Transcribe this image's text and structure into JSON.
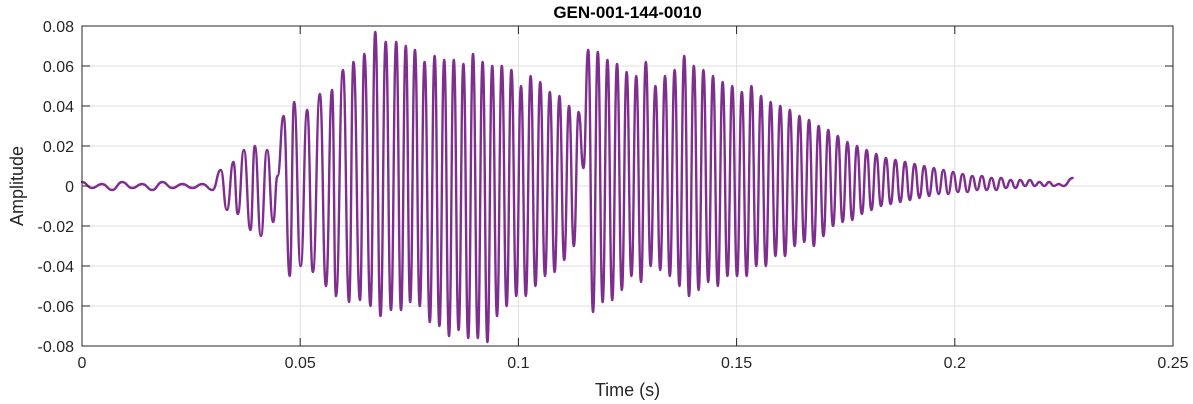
{
  "chart_data": {
    "type": "line",
    "title": "GEN-001-144-0010",
    "xlabel": "Time (s)",
    "ylabel": "Amplitude",
    "xlim": [
      0,
      0.25
    ],
    "ylim": [
      -0.08,
      0.08
    ],
    "xticks": [
      0,
      0.05,
      0.1,
      0.15,
      0.2,
      0.25
    ],
    "xtick_labels": [
      "0",
      "0.05",
      "0.1",
      "0.15",
      "0.2",
      "0.25"
    ],
    "yticks": [
      -0.08,
      -0.06,
      -0.04,
      -0.02,
      0,
      0.02,
      0.04,
      0.06,
      0.08
    ],
    "ytick_labels": [
      "-0.08",
      "-0.06",
      "-0.04",
      "-0.02",
      "0",
      "0.02",
      "0.04",
      "0.06",
      "0.08"
    ],
    "grid": true,
    "box": true,
    "colors": {
      "series": "#7E2F8E",
      "grid": "#DFDFDF",
      "axes": "#262626"
    },
    "series": [
      {
        "x": [
          0,
          0.0023,
          0.0046,
          0.0069,
          0.0092,
          0.0115,
          0.0138,
          0.0161,
          0.0184,
          0.0207,
          0.023,
          0.0253,
          0.0276,
          0.0299,
          0.0318,
          0.0332,
          0.0347,
          0.0357,
          0.0371,
          0.0386,
          0.0396,
          0.041,
          0.0424,
          0.0438,
          0.0448,
          0.0462,
          0.0476,
          0.0486,
          0.0501,
          0.0516,
          0.0529,
          0.0545,
          0.0559,
          0.0573,
          0.0582,
          0.0598,
          0.0612,
          0.0622,
          0.0637,
          0.0647,
          0.0661,
          0.0672,
          0.0684,
          0.0696,
          0.0708,
          0.072,
          0.0731,
          0.0742,
          0.0752,
          0.0763,
          0.0774,
          0.0785,
          0.0797,
          0.0808,
          0.0819,
          0.083,
          0.0841,
          0.0852,
          0.0863,
          0.0874,
          0.0885,
          0.0896,
          0.0907,
          0.0918,
          0.0929,
          0.094,
          0.0951,
          0.0962,
          0.0973,
          0.0984,
          0.0995,
          0.1006,
          0.1017,
          0.1028,
          0.1039,
          0.105,
          0.1061,
          0.1072,
          0.1083,
          0.1094,
          0.1105,
          0.1116,
          0.1127,
          0.1138,
          0.1149,
          0.116,
          0.1171,
          0.1182,
          0.1193,
          0.1204,
          0.1215,
          0.1226,
          0.1237,
          0.1248,
          0.1259,
          0.127,
          0.1281,
          0.1292,
          0.1303,
          0.1314,
          0.1325,
          0.1336,
          0.1347,
          0.1358,
          0.1369,
          0.138,
          0.1391,
          0.1402,
          0.1413,
          0.1424,
          0.1435,
          0.1446,
          0.1457,
          0.1468,
          0.1479,
          0.149,
          0.1501,
          0.1512,
          0.1523,
          0.1534,
          0.1545,
          0.1556,
          0.1567,
          0.1578,
          0.1589,
          0.16,
          0.1611,
          0.1622,
          0.1633,
          0.1644,
          0.1655,
          0.1666,
          0.1677,
          0.1688,
          0.1699,
          0.171,
          0.1721,
          0.1732,
          0.1743,
          0.1754,
          0.1765,
          0.1776,
          0.1787,
          0.1798,
          0.1809,
          0.182,
          0.1831,
          0.1842,
          0.1853,
          0.1864,
          0.1875,
          0.1886,
          0.1897,
          0.1908,
          0.1919,
          0.193,
          0.1941,
          0.1952,
          0.1963,
          0.1974,
          0.1985,
          0.1996,
          0.2007,
          0.2018,
          0.2029,
          0.204,
          0.2051,
          0.2062,
          0.2073,
          0.2084,
          0.2095,
          0.2106,
          0.2117,
          0.2128,
          0.2139,
          0.215,
          0.2161,
          0.2172,
          0.2183,
          0.2194,
          0.2205,
          0.2216,
          0.2227,
          0.2238,
          0.2249,
          0.227
        ],
        "y": [
          0.002,
          -0.001,
          0.001,
          -0.002,
          0.002,
          -0.001,
          0.001,
          -0.002,
          0.002,
          -0.001,
          0.001,
          -0.001,
          0.001,
          -0.002,
          0.008,
          -0.012,
          0.012,
          -0.014,
          0.018,
          -0.022,
          0.02,
          -0.025,
          0.018,
          -0.018,
          0.005,
          0.035,
          -0.045,
          0.042,
          -0.04,
          0.038,
          -0.043,
          0.046,
          -0.05,
          0.048,
          -0.055,
          0.058,
          -0.058,
          0.062,
          -0.057,
          0.066,
          -0.06,
          0.077,
          -0.065,
          0.072,
          -0.062,
          0.072,
          -0.062,
          0.07,
          -0.058,
          0.068,
          -0.06,
          0.062,
          -0.068,
          0.065,
          -0.07,
          0.063,
          -0.075,
          0.063,
          -0.072,
          0.061,
          -0.076,
          0.066,
          -0.076,
          0.062,
          -0.078,
          0.06,
          -0.065,
          0.06,
          -0.06,
          0.058,
          -0.055,
          0.05,
          -0.055,
          0.055,
          -0.05,
          0.052,
          -0.045,
          0.047,
          -0.043,
          0.045,
          -0.037,
          0.04,
          -0.03,
          0.037,
          0.009,
          0.068,
          -0.063,
          0.067,
          -0.058,
          0.063,
          -0.057,
          0.061,
          -0.052,
          0.057,
          -0.045,
          0.055,
          -0.048,
          0.062,
          -0.04,
          0.05,
          -0.042,
          0.055,
          -0.045,
          0.058,
          -0.05,
          0.065,
          -0.055,
          0.06,
          -0.052,
          0.058,
          -0.048,
          0.055,
          -0.05,
          0.052,
          -0.045,
          0.05,
          -0.045,
          0.047,
          -0.045,
          0.05,
          -0.04,
          0.045,
          -0.04,
          0.042,
          -0.035,
          0.04,
          -0.035,
          0.038,
          -0.03,
          0.035,
          -0.028,
          0.033,
          -0.03,
          0.03,
          -0.025,
          0.028,
          -0.02,
          0.025,
          -0.018,
          0.022,
          -0.017,
          0.02,
          -0.014,
          0.018,
          -0.012,
          0.016,
          -0.01,
          0.014,
          -0.009,
          0.013,
          -0.008,
          0.012,
          -0.007,
          0.011,
          -0.006,
          0.01,
          -0.005,
          0.009,
          -0.004,
          0.008,
          -0.004,
          0.007,
          -0.003,
          0.006,
          -0.003,
          0.005,
          -0.002,
          0.005,
          -0.002,
          0.004,
          -0.002,
          0.004,
          -0.001,
          0.003,
          -0.001,
          0.003,
          0.0,
          0.003,
          0.0,
          0.002,
          0.0,
          0.002,
          0.0,
          0.001,
          0.0,
          0.004
        ]
      }
    ]
  }
}
